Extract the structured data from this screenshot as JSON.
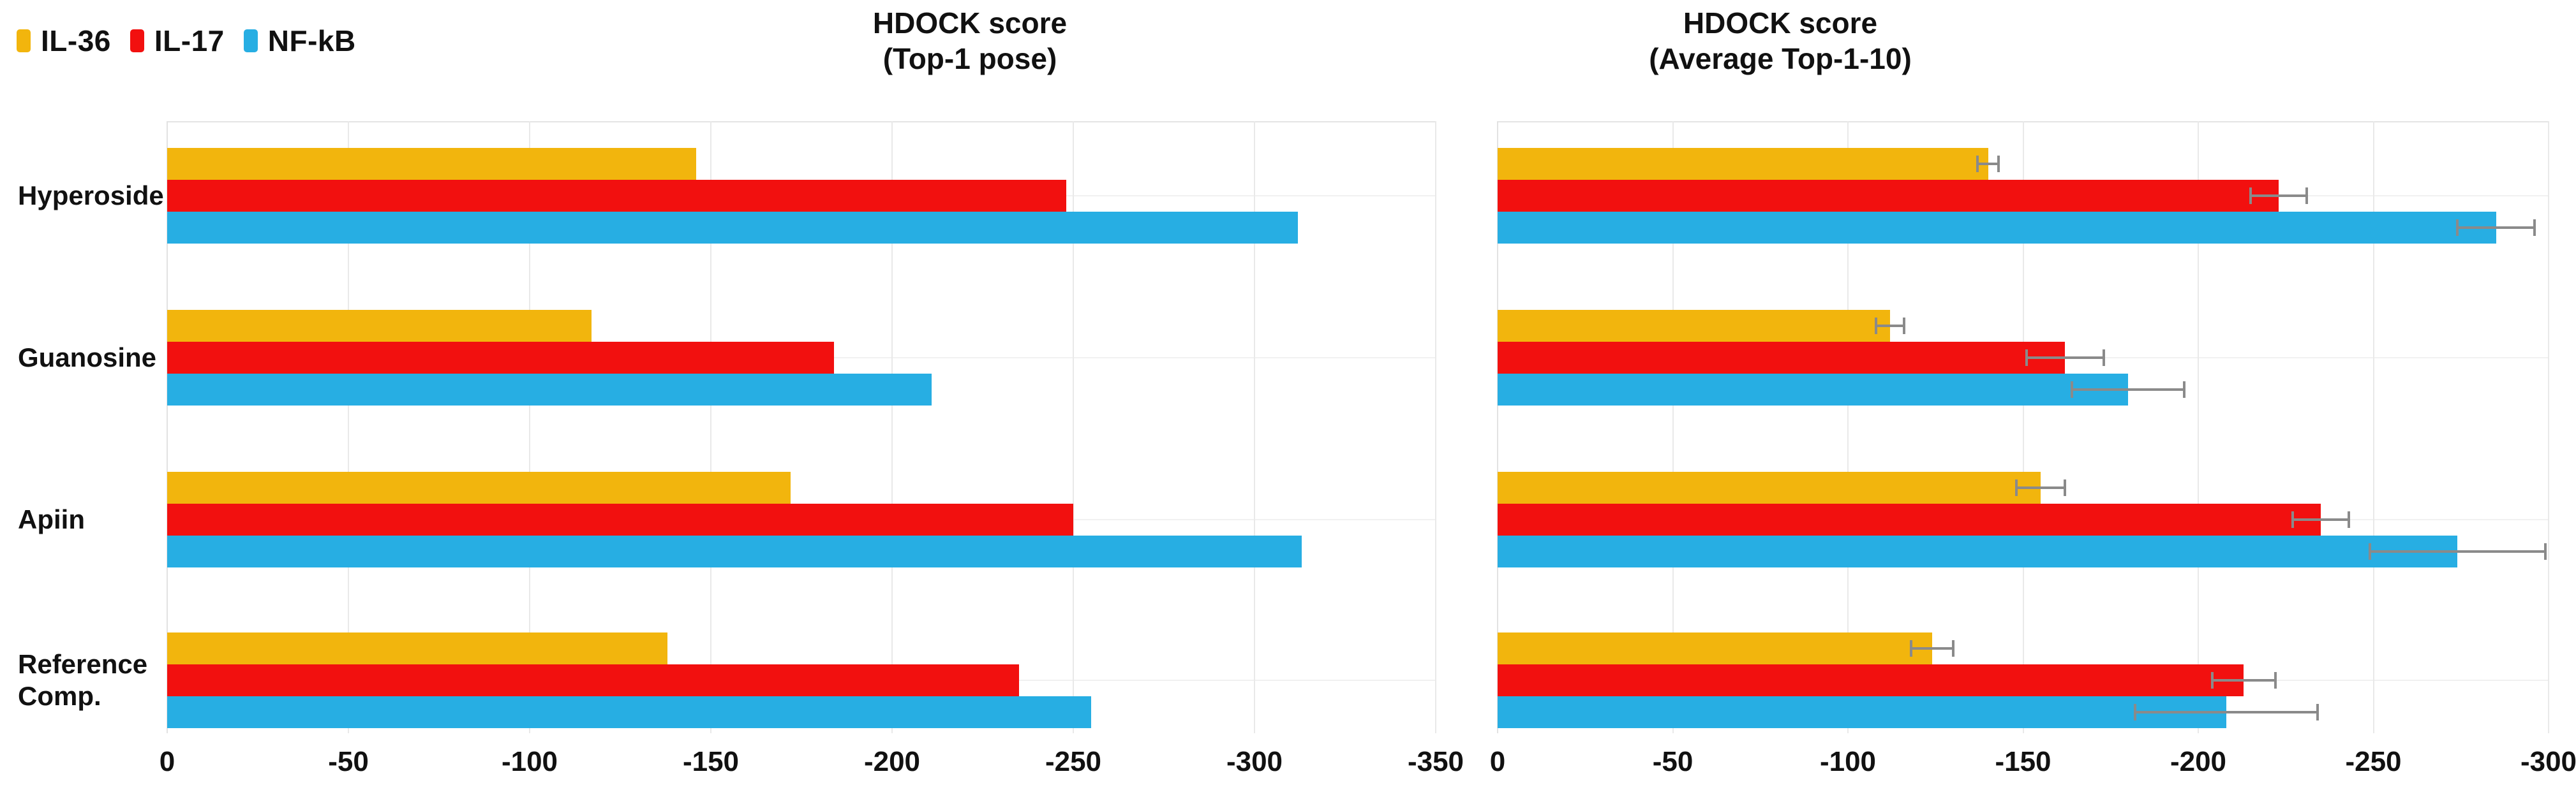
{
  "legend": [
    {
      "label": "IL-36",
      "color": "#F2B50D"
    },
    {
      "label": "IL-17",
      "color": "#F2100F"
    },
    {
      "label": "NF-kB",
      "color": "#27AEE3"
    }
  ],
  "colors": {
    "il36": "#F2B50D",
    "il17": "#F2100F",
    "nfkb": "#27AEE3",
    "error_bar": "#8a8a8a",
    "gridline": "#e9e9e9",
    "text": "#111111"
  },
  "chart_data": [
    {
      "type": "bar",
      "orientation": "horizontal",
      "title_line1": "HDOCK score",
      "title_line2": "(Top-1 pose)",
      "categories": [
        "Hyperoside",
        "Guanosine",
        "Apiin",
        "Reference\nComp."
      ],
      "series": [
        {
          "name": "IL-36",
          "color": "#F2B50D",
          "values": [
            -146,
            -117,
            -172,
            -138
          ]
        },
        {
          "name": "IL-17",
          "color": "#F2100F",
          "values": [
            -248,
            -184,
            -250,
            -235
          ]
        },
        {
          "name": "NF-kB",
          "color": "#27AEE3",
          "values": [
            -312,
            -211,
            -313,
            -255
          ]
        }
      ],
      "xlabel": "",
      "ylabel": "",
      "axis": {
        "min": 0,
        "max": -350,
        "ticks": [
          0,
          -50,
          -100,
          -150,
          -200,
          -250,
          -300,
          -350
        ]
      },
      "grid": true,
      "legend_position": "top-left"
    },
    {
      "type": "bar",
      "orientation": "horizontal",
      "title_line1": "HDOCK score",
      "title_line2": "(Average Top-1-10)",
      "categories": [
        "Hyperoside",
        "Guanosine",
        "Apiin",
        "Reference\nComp."
      ],
      "series": [
        {
          "name": "IL-36",
          "color": "#F2B50D",
          "values": [
            -140,
            -112,
            -155,
            -124
          ],
          "errors": [
            3,
            4,
            7,
            6
          ]
        },
        {
          "name": "IL-17",
          "color": "#F2100F",
          "values": [
            -223,
            -162,
            -235,
            -213
          ],
          "errors": [
            8,
            11,
            8,
            9
          ]
        },
        {
          "name": "NF-kB",
          "color": "#27AEE3",
          "values": [
            -285,
            -180,
            -274,
            -208
          ],
          "errors": [
            11,
            16,
            25,
            26
          ]
        }
      ],
      "xlabel": "",
      "ylabel": "",
      "axis": {
        "min": 0,
        "max": -300,
        "ticks": [
          0,
          -50,
          -100,
          -150,
          -200,
          -250,
          -300
        ]
      },
      "grid": true,
      "error_bars": true
    }
  ]
}
